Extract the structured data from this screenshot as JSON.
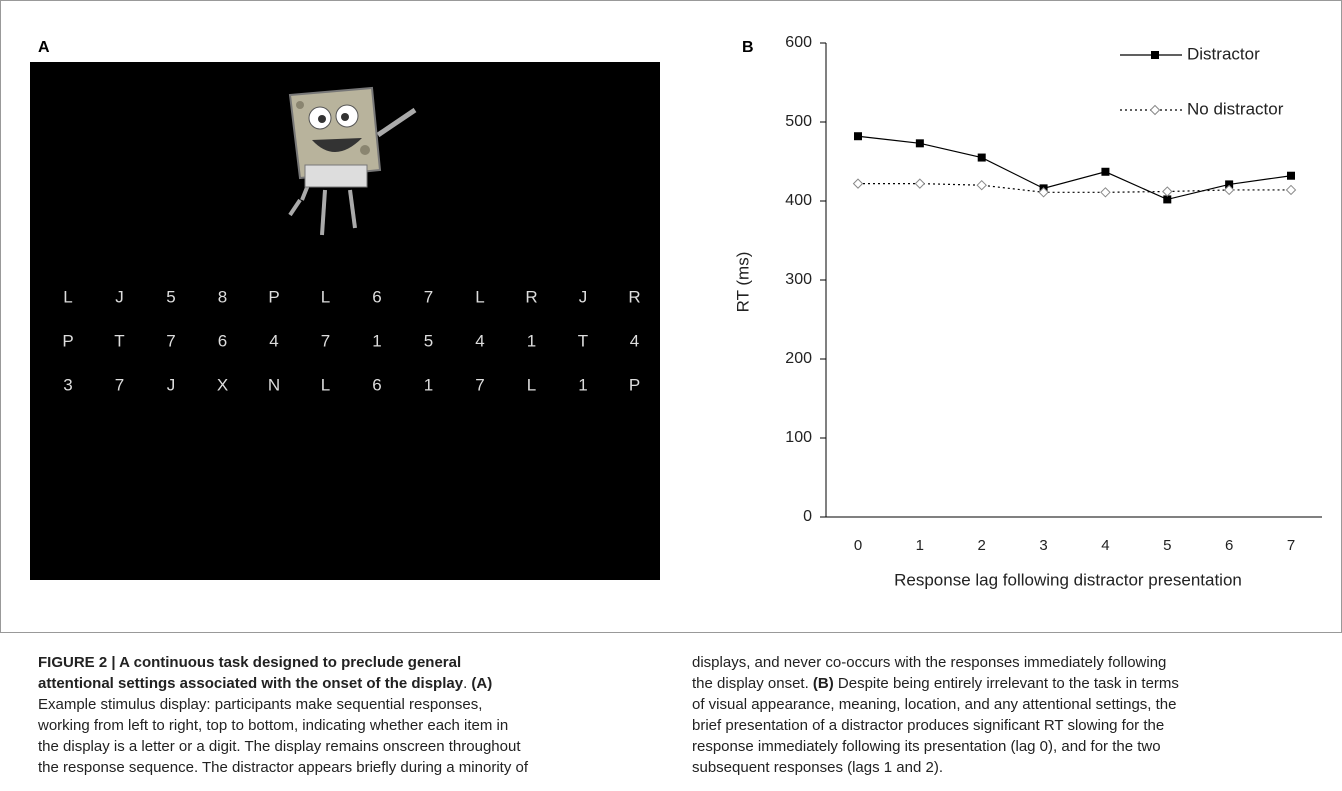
{
  "panel_a": {
    "label": "A",
    "letters": [
      [
        "L",
        "J",
        "5",
        "8",
        "P",
        "L",
        "6",
        "7",
        "L",
        "R",
        "J",
        "R"
      ],
      [
        "P",
        "T",
        "7",
        "6",
        "4",
        "7",
        "1",
        "5",
        "4",
        "1",
        "T",
        "4"
      ],
      [
        "3",
        "7",
        "J",
        "X",
        "N",
        "L",
        "6",
        "1",
        "7",
        "L",
        "1",
        "P"
      ]
    ]
  },
  "chart_data": {
    "type": "line",
    "panel_label": "B",
    "categories": [
      "0",
      "1",
      "2",
      "3",
      "4",
      "5",
      "6",
      "7"
    ],
    "series": [
      {
        "name": "Distractor",
        "color": "#000000",
        "marker": "square",
        "dash": "solid",
        "values": [
          482,
          473,
          455,
          416,
          437,
          402,
          421,
          432
        ]
      },
      {
        "name": "No distractor",
        "color": "#000000",
        "marker": "diamond",
        "dash": "dotted",
        "values": [
          422,
          422,
          420,
          411,
          411,
          412,
          414,
          414
        ]
      }
    ],
    "ylim": [
      0,
      600
    ],
    "yticks": [
      0,
      100,
      200,
      300,
      400,
      500,
      600
    ],
    "xlabel": "Response lag following distractor presentation",
    "ylabel": "RT (ms)",
    "legend": "top-right"
  },
  "caption": {
    "left": [
      [
        {
          "text": "FIGURE 2 | A continuous task designed to preclude general",
          "bold": true
        }
      ],
      [
        {
          "text": "attentional settings associated with the onset of the display",
          "bold": true
        },
        {
          "text": ". ",
          "bold": false
        },
        {
          "text": "(A)",
          "bold": true
        }
      ],
      [
        {
          "text": "Example stimulus display: participants make sequential responses,",
          "bold": false
        }
      ],
      [
        {
          "text": "working from left to right, top to bottom, indicating whether each item in",
          "bold": false
        }
      ],
      [
        {
          "text": "the display is a letter or a digit. The display remains onscreen throughout",
          "bold": false
        }
      ],
      [
        {
          "text": "the response sequence. The distractor appears briefly during a minority of",
          "bold": false
        }
      ]
    ],
    "right": [
      [
        {
          "text": "displays, and never co-occurs with the responses immediately following",
          "bold": false
        }
      ],
      [
        {
          "text": "the display onset. ",
          "bold": false
        },
        {
          "text": "(B)",
          "bold": true
        },
        {
          "text": " Despite being entirely irrelevant to the task in terms",
          "bold": false
        }
      ],
      [
        {
          "text": "of visual appearance, meaning, location, and any attentional settings, the",
          "bold": false
        }
      ],
      [
        {
          "text": "brief presentation of a distractor produces significant RT slowing for the",
          "bold": false
        }
      ],
      [
        {
          "text": "response immediately following its presentation (lag 0), and for the two",
          "bold": false
        }
      ],
      [
        {
          "text": "subsequent responses (lags 1 and 2).",
          "bold": false
        }
      ]
    ]
  }
}
